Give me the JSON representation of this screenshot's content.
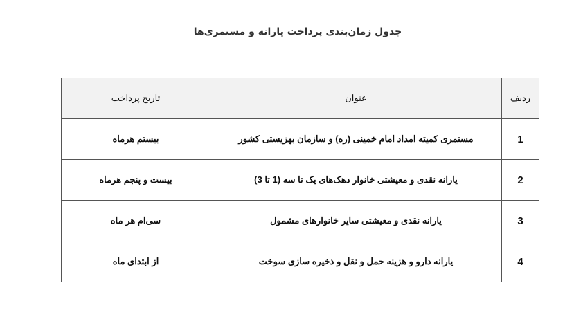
{
  "title": "جدول زمان‌بندی پرداخت یارانه و مستمری‌ها",
  "table": {
    "headers": [
      "ردیف",
      "عنوان",
      "تاریخ پرداخت"
    ],
    "rows": [
      {
        "num": "1",
        "title": "مستمری کمیته امداد امام خمینی (ره) و سازمان بهزیستی کشور",
        "date": "بیستم هرماه"
      },
      {
        "num": "2",
        "title": "یارانه نقدی و معیشتی خانوار دهک‌های یک تا سه (1 تا 3)",
        "date": "بیست و پنجم هرماه"
      },
      {
        "num": "3",
        "title": "یارانه نقدی و معیشتی سایر خانوارهای مشمول",
        "date": "سی‌ام هر ماه"
      },
      {
        "num": "4",
        "title": "یارانه دارو و هزینه حمل و نقل و ذخیره سازی سوخت",
        "date": "از ابتدای ماه"
      }
    ]
  }
}
